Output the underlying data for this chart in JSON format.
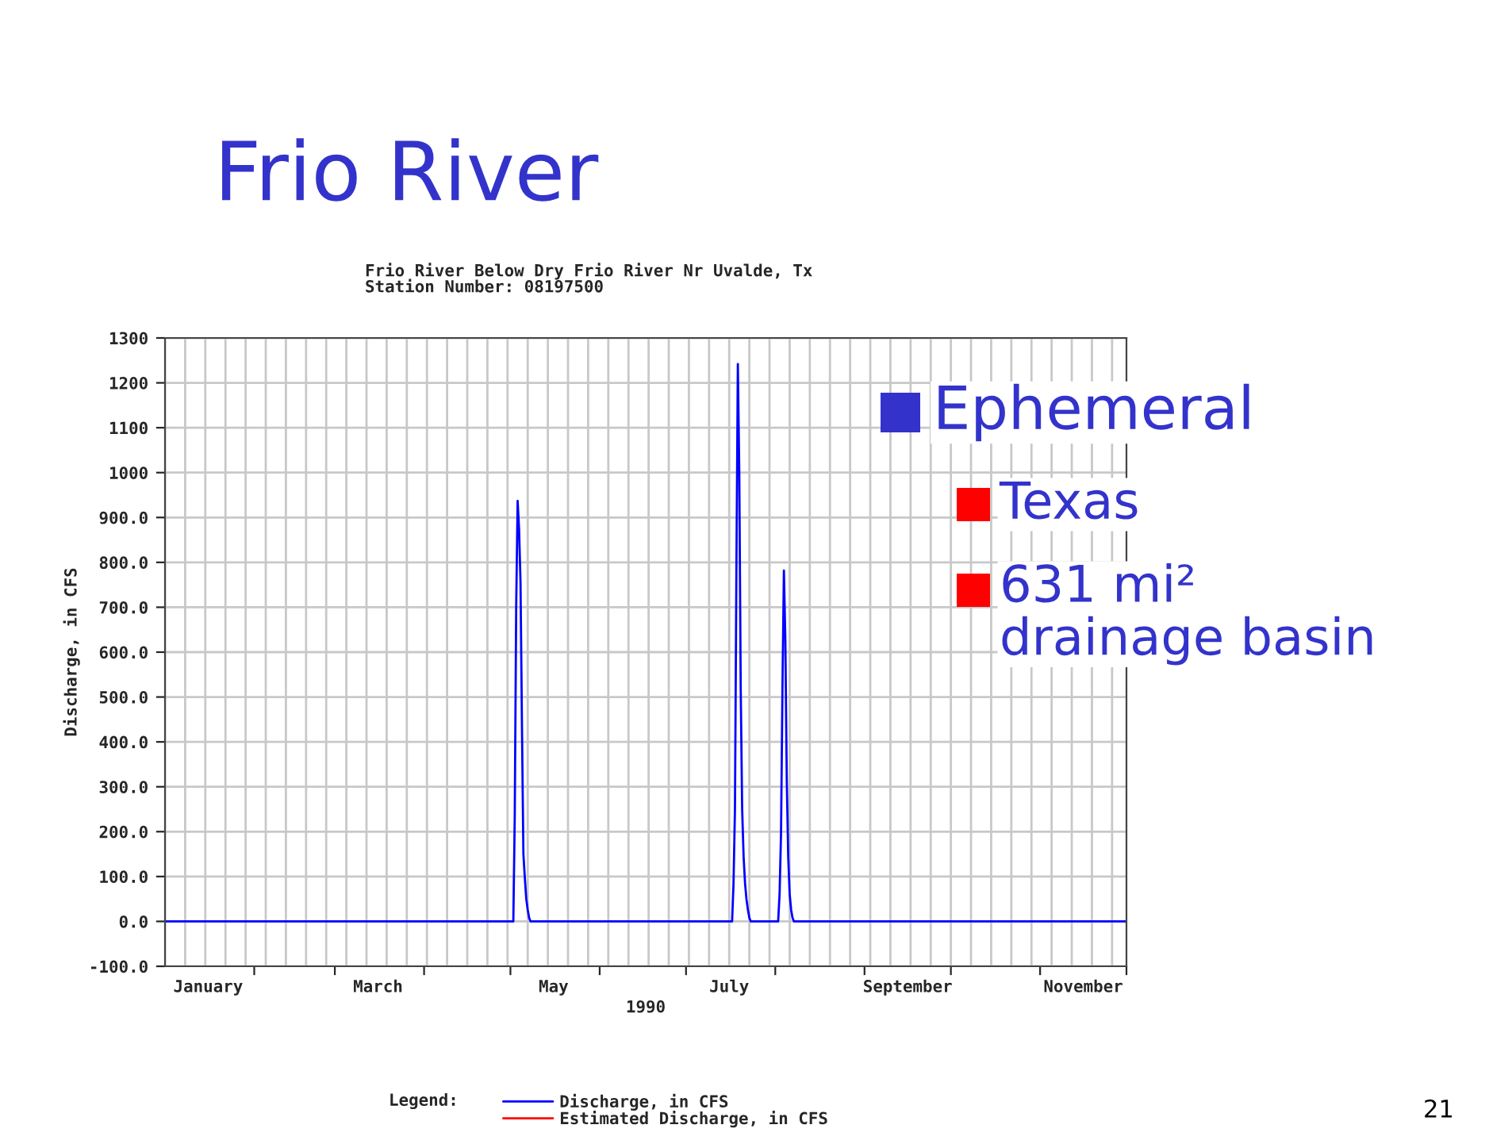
{
  "chart_data": {
    "type": "line",
    "title": "Frio River",
    "subtitle": "Frio River Below Dry Frio River Nr Uvalde, Tx\nStation Number: 08197500",
    "xlabel": "1990",
    "ylabel": "Discharge, in CFS",
    "legend_title": "Legend:",
    "annotations": [
      "Ephemeral",
      "Texas",
      "631 mi²\ndrainage basin",
      "21"
    ],
    "series": [
      {
        "name": "Discharge, in CFS",
        "color": "#0000ff",
        "x": [
          "1990-01-01",
          "1990-05-02T00:00",
          "1990-05-02T12:00",
          "1990-05-03T00:00",
          "1990-05-03T12:00",
          "1990-05-04T00:00",
          "1990-05-04T12:00",
          "1990-05-05T00:00",
          "1990-05-05T12:00",
          "1990-05-06T00:00",
          "1990-05-06T12:00",
          "1990-05-07T00:00",
          "1990-05-07T12:00",
          "1990-05-08T00:00",
          "1990-07-17T00:00",
          "1990-07-17T12:00",
          "1990-07-18T00:00",
          "1990-07-18T12:00",
          "1990-07-19T00:00",
          "1990-07-19T12:00",
          "1990-07-20T00:00",
          "1990-07-20T12:00",
          "1990-07-21T00:00",
          "1990-07-21T12:00",
          "1990-07-22T00:00",
          "1990-07-22T12:00",
          "1990-07-23T00:00",
          "1990-07-23T12:00",
          "1990-08-02T00:00",
          "1990-08-02T12:00",
          "1990-08-03T00:00",
          "1990-08-03T12:00",
          "1990-08-04T00:00",
          "1990-08-04T12:00",
          "1990-08-05T00:00",
          "1990-08-05T12:00",
          "1990-08-06T00:00",
          "1990-08-06T12:00",
          "1990-08-07T00:00",
          "1990-08-07T12:00",
          "1990-12-01"
        ],
        "values": [
          0,
          0,
          234,
          703,
          937,
          874,
          756,
          438,
          150,
          97,
          50,
          26,
          8,
          0,
          0,
          85,
          252,
          786,
          1242,
          998,
          517,
          250,
          144,
          85,
          49,
          26,
          8,
          0,
          0,
          61,
          197,
          521,
          782,
          627,
          315,
          144,
          61,
          26,
          8,
          0,
          0
        ]
      },
      {
        "name": "Estimated Discharge, in CFS",
        "color": "#ff0000"
      }
    ],
    "xlim": [
      "1990-01-01",
      "1990-12-01"
    ],
    "xticks": [
      {
        "value": "1990-01-16",
        "label": "January"
      },
      {
        "value": "1990-02-01",
        "label": null
      },
      {
        "value": "1990-03-01",
        "label": null
      },
      {
        "value": "1990-03-16",
        "label": "March"
      },
      {
        "value": "1990-04-01",
        "label": null
      },
      {
        "value": "1990-05-01",
        "label": null
      },
      {
        "value": "1990-05-16",
        "label": "May"
      },
      {
        "value": "1990-06-01",
        "label": null
      },
      {
        "value": "1990-07-01",
        "label": null
      },
      {
        "value": "1990-07-16",
        "label": "July"
      },
      {
        "value": "1990-08-01",
        "label": null
      },
      {
        "value": "1990-09-01",
        "label": null
      },
      {
        "value": "1990-09-16",
        "label": "September"
      },
      {
        "value": "1990-10-01",
        "label": null
      },
      {
        "value": "1990-11-01",
        "label": null
      },
      {
        "value": "1990-11-16",
        "label": "November"
      },
      {
        "value": "1990-12-01",
        "label": null
      }
    ],
    "ylim": [
      -100,
      1300
    ],
    "yticks": [
      {
        "value": -100,
        "label": "-100.0"
      },
      {
        "value": 0,
        "label": "0.0"
      },
      {
        "value": 100,
        "label": "100.0"
      },
      {
        "value": 200,
        "label": "200.0"
      },
      {
        "value": 300,
        "label": "300.0"
      },
      {
        "value": 400,
        "label": "400.0"
      },
      {
        "value": 500,
        "label": "500.0"
      },
      {
        "value": 600,
        "label": "600.0"
      },
      {
        "value": 700,
        "label": "700.0"
      },
      {
        "value": 800,
        "label": "800.0"
      },
      {
        "value": 900,
        "label": "900.0"
      },
      1000,
      1100,
      1200,
      1300
    ],
    "grid": true,
    "legend": "bottom",
    "marker": "none",
    "line_style": "solid"
  }
}
